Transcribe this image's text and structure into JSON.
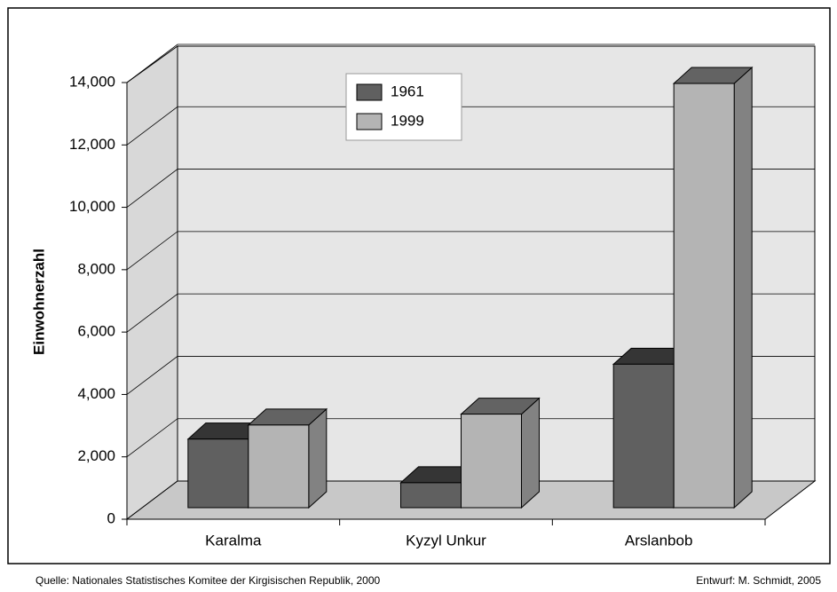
{
  "chart_data": {
    "type": "bar3d",
    "y_label": "Einwohnerzahl",
    "categories": [
      "Karalma",
      "Kyzyl Unkur",
      "Arslanbob"
    ],
    "series": [
      {
        "name": "1961",
        "color": "#606060",
        "values": [
          2200,
          800,
          4600
        ]
      },
      {
        "name": "1999",
        "color": "#b4b4b4",
        "values": [
          2650,
          3000,
          13600
        ]
      }
    ],
    "ylim": [
      0,
      14000
    ],
    "yticks": [
      0,
      {
        "value": 2000,
        "label": "2,000"
      },
      {
        "value": 4000,
        "label": "4,000"
      },
      {
        "value": 6000,
        "label": "6,000"
      },
      {
        "value": 8000,
        "label": "8,000"
      },
      {
        "value": 10000,
        "label": "10,000"
      },
      {
        "value": 12000,
        "label": "12,000"
      },
      {
        "value": 14000,
        "label": "14,000"
      }
    ],
    "grid": true,
    "legend": "top-center",
    "source": "Quelle: Nationales Statistisches Komitee der Kirgisischen Republik, 2000",
    "credit": "Entwurf: M. Schmidt, 2005"
  }
}
